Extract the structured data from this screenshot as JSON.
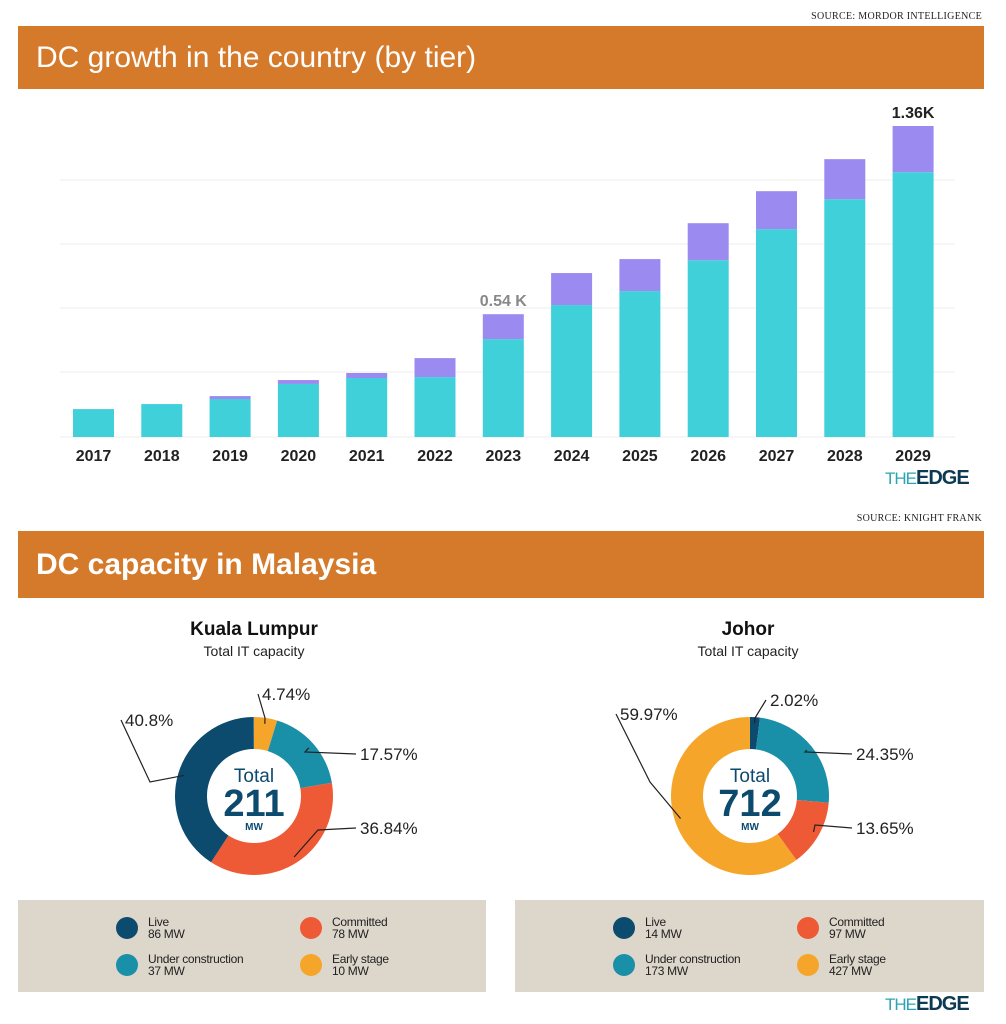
{
  "top_section": {
    "source": "SOURCE: MORDOR INTELLIGENCE",
    "title": "DC growth in the country (by tier)"
  },
  "bottom_section": {
    "source": "SOURCE: KNIGHT FRANK",
    "title": "DC capacity in Malaysia"
  },
  "logo": {
    "the": "THE",
    "edge": "EDGE"
  },
  "colors": {
    "header": "#D57A2B",
    "series_a": "#3FD0D9",
    "series_b": "#9B8AF0",
    "live": "#0C4A6E",
    "under_construction": "#1A8FA8",
    "committed": "#EE5A36",
    "early_stage": "#F5A62A",
    "legend_bg": "#DDD6CB"
  },
  "chart_data": [
    {
      "type": "bar",
      "stacked": true,
      "title": "DC growth in the country (by tier)",
      "categories": [
        "2017",
        "2018",
        "2019",
        "2020",
        "2021",
        "2022",
        "2023",
        "2024",
        "2025",
        "2026",
        "2027",
        "2028",
        "2029"
      ],
      "series": [
        {
          "values": [
            122,
            144,
            166,
            232,
            258,
            262,
            428,
            577,
            638,
            773,
            909,
            1040,
            1158
          ],
          "color": "#3FD0D9"
        },
        {
          "values": [
            0,
            0,
            13,
            17,
            22,
            83,
            109,
            140,
            140,
            162,
            166,
            175,
            202
          ],
          "color": "#9B8AF0"
        }
      ],
      "annotations": [
        {
          "category": "2023",
          "text": "0.54 K"
        },
        {
          "category": "2029",
          "text": "1.36K"
        }
      ],
      "ylim": [
        0,
        1400
      ],
      "grid": true,
      "y_tick_labels": false
    },
    {
      "type": "pie",
      "donut": true,
      "title": "Kuala Lumpur",
      "subtitle": "Total IT capacity",
      "center": {
        "label": "Total",
        "value": "211",
        "unit": "MW"
      },
      "slices": [
        {
          "name": "Early stage",
          "percent_label": "4.74%",
          "value": 4.74,
          "mw": "10 MW",
          "color": "#F5A62A"
        },
        {
          "name": "Under construction",
          "percent_label": "17.57%",
          "value": 17.57,
          "mw": "37 MW",
          "color": "#1A8FA8"
        },
        {
          "name": "Committed",
          "percent_label": "36.84%",
          "value": 36.84,
          "mw": "78 MW",
          "color": "#EE5A36"
        },
        {
          "name": "Live",
          "percent_label": "40.8%",
          "value": 40.8,
          "mw": "86 MW",
          "color": "#0C4A6E"
        }
      ]
    },
    {
      "type": "pie",
      "donut": true,
      "title": "Johor",
      "subtitle": "Total IT capacity",
      "center": {
        "label": "Total",
        "value": "712",
        "unit": "MW"
      },
      "slices": [
        {
          "name": "Live",
          "percent_label": "2.02%",
          "value": 2.02,
          "mw": "14 MW",
          "color": "#0C4A6E"
        },
        {
          "name": "Under construction",
          "percent_label": "24.35%",
          "value": 24.35,
          "mw": "173 MW",
          "color": "#1A8FA8"
        },
        {
          "name": "Committed",
          "percent_label": "13.65%",
          "value": 13.65,
          "mw": "97 MW",
          "color": "#EE5A36"
        },
        {
          "name": "Early stage",
          "percent_label": "59.97%",
          "value": 59.97,
          "mw": "427 MW",
          "color": "#F5A62A"
        }
      ]
    }
  ]
}
